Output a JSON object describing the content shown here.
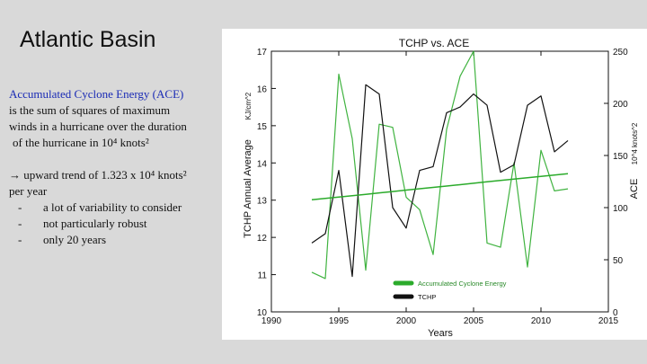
{
  "slide": {
    "title": "Atlantic Basin",
    "ace_heading": "Accumulated Cyclone Energy (ACE)",
    "ace_lines": [
      "is the sum of squares of maximum",
      "winds in a hurricane over the duration",
      "of the hurricane in 10⁴ knots²"
    ],
    "trend_lines": [
      "→ upward trend of 1.323 x 10⁴ knots²",
      "per year"
    ],
    "bullets": [
      "a lot of variability to consider",
      "not particularly robust",
      "only 20 years"
    ],
    "bullet_marker": "-"
  },
  "chart_data": {
    "type": "line",
    "title": "TCHP vs. ACE",
    "xlabel": "Years",
    "ylabel_left": "TCHP Annual Average",
    "ylabel_left_unit": "KJ/cm^2",
    "ylabel_right": "ACE",
    "ylabel_right_unit": "10^4 knots^2",
    "xlim": [
      1990,
      2015
    ],
    "ylim_left": [
      10,
      17
    ],
    "ylim_right": [
      0,
      250
    ],
    "x_ticks": [
      "1990",
      "1995",
      "2000",
      "2005",
      "2010",
      "2015"
    ],
    "y_left_ticks": [
      "10",
      "11",
      "12",
      "13",
      "14",
      "15",
      "16",
      "17"
    ],
    "y_right_ticks": [
      "0",
      "50",
      "100",
      "150",
      "200",
      "250"
    ],
    "x": [
      1993,
      1994,
      1995,
      1996,
      1997,
      1998,
      1999,
      2000,
      2001,
      2002,
      2003,
      2004,
      2005,
      2006,
      2007,
      2008,
      2009,
      2010,
      2011,
      2012
    ],
    "series": [
      {
        "name": "Accumulated Cyclone Energy",
        "axis": "right",
        "color": "#2bab2b",
        "values": [
          38,
          32,
          228,
          166,
          40,
          180,
          177,
          110,
          98,
          55,
          175,
          226,
          250,
          66,
          62,
          143,
          43,
          155,
          116,
          118
        ]
      },
      {
        "name": "TCHP",
        "axis": "left",
        "color": "#111111",
        "values": [
          11.85,
          12.1,
          13.8,
          10.95,
          16.1,
          15.85,
          12.8,
          12.25,
          13.8,
          13.9,
          15.35,
          15.5,
          15.85,
          15.55,
          13.75,
          13.95,
          15.55,
          15.8,
          14.3,
          14.6
        ]
      },
      {
        "name": "",
        "kind": "trendline",
        "axis": "right",
        "color": "#2bab2b",
        "values": [
          107.5,
          108.8,
          110.1,
          111.5,
          112.8,
          114.1,
          115.4,
          116.8,
          118.1,
          119.4,
          120.7,
          122.0,
          123.4,
          124.7,
          126.0,
          127.3,
          128.7,
          130.0,
          131.3,
          132.6
        ]
      }
    ],
    "legend": {
      "placement": "lower-left"
    },
    "grid": false
  }
}
